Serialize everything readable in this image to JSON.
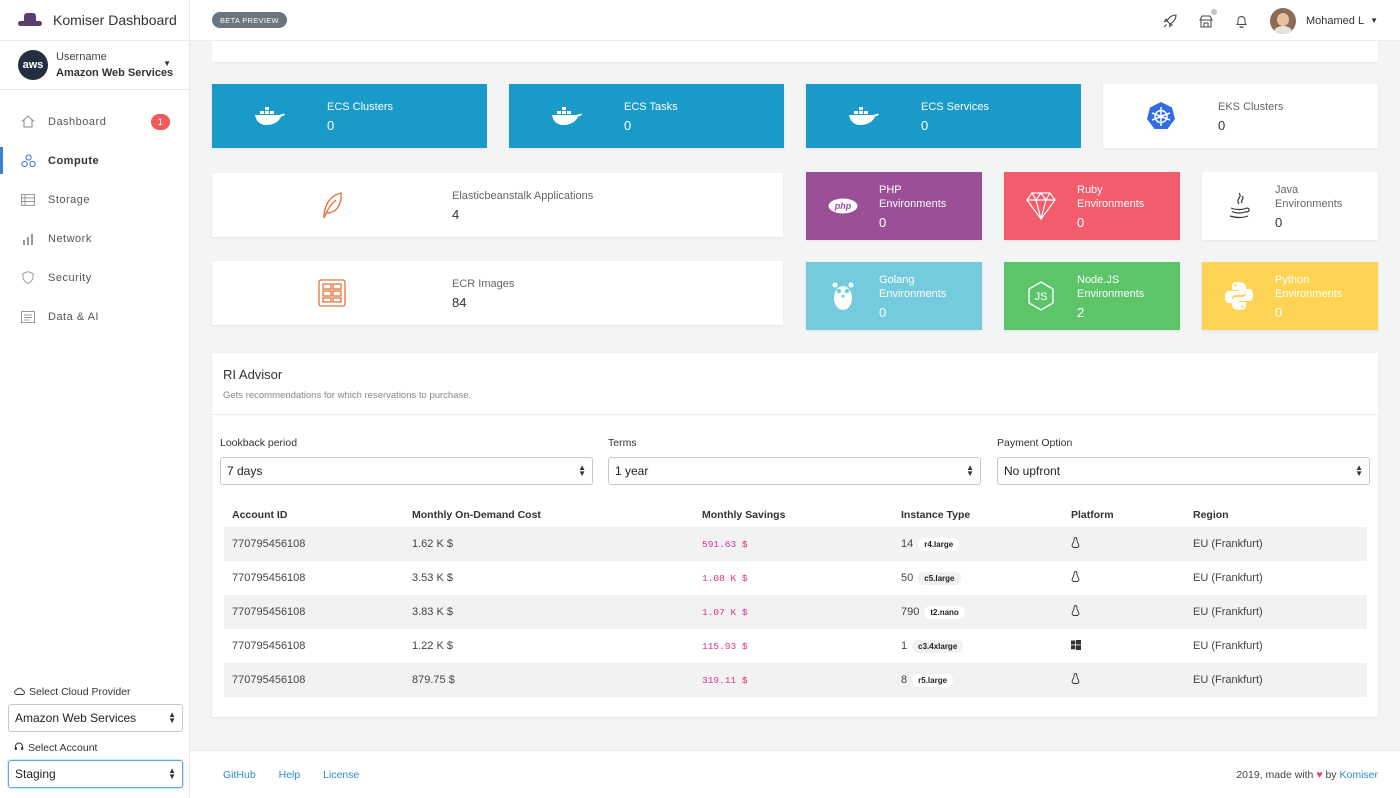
{
  "app": {
    "title": "Komiser Dashboard",
    "beta_label": "BETA PREVIEW"
  },
  "account": {
    "avatar_text": "aws",
    "username": "Username",
    "provider": "Amazon Web Services"
  },
  "nav": [
    {
      "label": "Dashboard",
      "badge": "1",
      "icon": "home-icon"
    },
    {
      "label": "Compute",
      "icon": "compute-icon",
      "active": true
    },
    {
      "label": "Storage",
      "icon": "storage-icon"
    },
    {
      "label": "Network",
      "icon": "network-icon"
    },
    {
      "label": "Security",
      "icon": "shield-icon"
    },
    {
      "label": "Data & AI",
      "icon": "data-icon"
    }
  ],
  "sidebar_bottom": {
    "cloud_label": "Select Cloud Provider",
    "cloud_value": "Amazon Web Services",
    "account_label": "Select Account",
    "account_value": "Staging"
  },
  "user": {
    "name": "Mohamed L"
  },
  "cards": {
    "ecs_clusters": {
      "label": "ECS Clusters",
      "value": "0"
    },
    "ecs_tasks": {
      "label": "ECS Tasks",
      "value": "0"
    },
    "ecs_services": {
      "label": "ECS Services",
      "value": "0"
    },
    "eks_clusters": {
      "label": "EKS Clusters",
      "value": "0"
    },
    "beanstalk": {
      "label": "Elasticbeanstalk Applications",
      "value": "4"
    },
    "ecr": {
      "label": "ECR Images",
      "value": "84"
    },
    "php": {
      "label1": "PHP",
      "label2": "Environments",
      "value": "0"
    },
    "ruby": {
      "label1": "Ruby",
      "label2": "Environments",
      "value": "0"
    },
    "java": {
      "label1": "Java",
      "label2": "Environments",
      "value": "0"
    },
    "golang": {
      "label1": "Golang",
      "label2": "Environments",
      "value": "0"
    },
    "node": {
      "label1": "Node.JS",
      "label2": "Environments",
      "value": "2"
    },
    "python": {
      "label1": "Python",
      "label2": "Environments",
      "value": "0"
    }
  },
  "colors": {
    "ecs": "#1a9ac9",
    "php": "#9b4f96",
    "ruby": "#f25c6b",
    "golang": "#73cbdd",
    "node": "#5cc56a",
    "python": "#fdd353",
    "accent": "#3a7ee0"
  },
  "ri": {
    "title": "RI Advisor",
    "subtitle": "Gets recommendations for which reservations to purchase.",
    "filters": {
      "lookback_label": "Lookback period",
      "lookback_value": "7 days",
      "terms_label": "Terms",
      "terms_value": "1 year",
      "payment_label": "Payment Option",
      "payment_value": "No upfront"
    },
    "columns": [
      "Account ID",
      "Monthly On-Demand Cost",
      "Monthly Savings",
      "Instance Type",
      "Platform",
      "Region"
    ],
    "rows": [
      {
        "account": "770795456108",
        "cost": "1.62 K $",
        "savings": "591.63 $",
        "count": "14",
        "type": "r4.large",
        "platform": "linux-icon",
        "region": "EU (Frankfurt)"
      },
      {
        "account": "770795456108",
        "cost": "3.53 K $",
        "savings": "1.08 K $",
        "count": "50",
        "type": "c5.large",
        "platform": "linux-icon",
        "region": "EU (Frankfurt)"
      },
      {
        "account": "770795456108",
        "cost": "3.83 K $",
        "savings": "1.07 K $",
        "count": "790",
        "type": "t2.nano",
        "platform": "linux-icon",
        "region": "EU (Frankfurt)"
      },
      {
        "account": "770795456108",
        "cost": "1.22 K $",
        "savings": "115.93 $",
        "count": "1",
        "type": "c3.4xlarge",
        "platform": "windows-icon",
        "region": "EU (Frankfurt)"
      },
      {
        "account": "770795456108",
        "cost": "879.75 $",
        "savings": "319.11 $",
        "count": "8",
        "type": "r5.large",
        "platform": "linux-icon",
        "region": "EU (Frankfurt)"
      }
    ]
  },
  "footer": {
    "links": [
      "GitHub",
      "Help",
      "License"
    ],
    "text_prefix": "2019, made with",
    "heart": "♥",
    "text_by": "by",
    "brand": "Komiser"
  }
}
